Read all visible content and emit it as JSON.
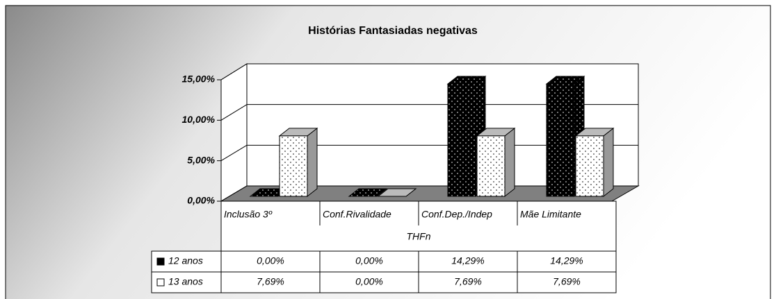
{
  "chart_data": {
    "type": "bar3d",
    "title": "Histórias Fantasiadas negativas",
    "x_label": "THFn",
    "categories": [
      "Inclusão 3º",
      "Conf.Rivalidade",
      "Conf.Dep./Indep",
      "Mãe Limitante"
    ],
    "series": [
      {
        "name": "12 anos",
        "color": "#000000",
        "values": [
          0,
          0,
          14.29,
          14.29
        ],
        "value_labels": [
          "0,00%",
          "0,00%",
          "14,29%",
          "14,29%"
        ]
      },
      {
        "name": "13 anos",
        "color": "#ffffff",
        "values": [
          7.69,
          0,
          7.69,
          7.69
        ],
        "value_labels": [
          "7,69%",
          "0,00%",
          "7,69%",
          "7,69%"
        ]
      }
    ],
    "ylim": [
      0,
      15
    ],
    "yticks": [
      {
        "value": 0,
        "label": "0,00%"
      },
      {
        "value": 5,
        "label": "5,00%"
      },
      {
        "value": 10,
        "label": "10,00%"
      },
      {
        "value": 15,
        "label": "15,00%"
      }
    ],
    "grid": true
  }
}
